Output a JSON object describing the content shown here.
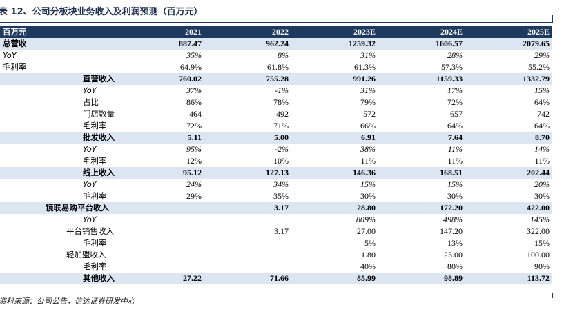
{
  "caption": "表 12、公司分板块业务收入及利润预测（百万元）",
  "source": "资料来源：公司公告，信达证券研发中心",
  "header": [
    "百万元",
    "2021",
    "2022",
    "2023E",
    "2024E",
    "2025E"
  ],
  "rows": [
    {
      "style": "hl",
      "indent": "",
      "cells": [
        "总营收",
        "887.47",
        "962.24",
        "1259.32",
        "1606.57",
        "2079.65"
      ]
    },
    {
      "style": "it",
      "indent": "",
      "cells": [
        "YoY",
        "35%",
        "8%",
        "31%",
        "28%",
        "29%"
      ]
    },
    {
      "style": "",
      "indent": "",
      "cells": [
        "毛利率",
        "64.9%",
        "61.8%",
        "61.3%",
        "57.3%",
        "55.2%"
      ]
    },
    {
      "style": "hl",
      "indent": "i1",
      "cells": [
        "直营收入",
        "760.02",
        "755.28",
        "991.26",
        "1159.33",
        "1332.79"
      ]
    },
    {
      "style": "it",
      "indent": "i1",
      "cells": [
        "YoY",
        "37%",
        "-1%",
        "31%",
        "17%",
        "15%"
      ]
    },
    {
      "style": "",
      "indent": "i1",
      "cells": [
        "占比",
        "86%",
        "78%",
        "79%",
        "72%",
        "64%"
      ]
    },
    {
      "style": "",
      "indent": "i1",
      "cells": [
        "门店数量",
        "464",
        "492",
        "572",
        "657",
        "742"
      ]
    },
    {
      "style": "",
      "indent": "i1",
      "cells": [
        "毛利率",
        "72%",
        "71%",
        "66%",
        "64%",
        "64%"
      ]
    },
    {
      "style": "hl",
      "indent": "i1",
      "cells": [
        "批发收入",
        "5.11",
        "5.00",
        "6.91",
        "7.64",
        "8.70"
      ]
    },
    {
      "style": "it",
      "indent": "i1",
      "cells": [
        "YoY",
        "95%",
        "-2%",
        "38%",
        "11%",
        "14%"
      ]
    },
    {
      "style": "",
      "indent": "i1",
      "cells": [
        "毛利率",
        "12%",
        "10%",
        "11%",
        "11%",
        "11%"
      ]
    },
    {
      "style": "hl",
      "indent": "i1",
      "cells": [
        "线上收入",
        "95.12",
        "127.13",
        "146.36",
        "168.51",
        "202.44"
      ]
    },
    {
      "style": "it",
      "indent": "i1",
      "cells": [
        "YoY",
        "24%",
        "34%",
        "15%",
        "15%",
        "20%"
      ]
    },
    {
      "style": "",
      "indent": "i1",
      "cells": [
        "毛利率",
        "29%",
        "35%",
        "30%",
        "30%",
        "30%"
      ]
    },
    {
      "style": "hl",
      "indent": "i3",
      "cells": [
        "镜联易购平台收入",
        "",
        "3.17",
        "28.80",
        "172.20",
        "422.00"
      ]
    },
    {
      "style": "it",
      "indent": "i1",
      "cells": [
        "YoY",
        "",
        "",
        "809%",
        "498%",
        "145%"
      ]
    },
    {
      "style": "",
      "indent": "i2",
      "cells": [
        "平台销售收入",
        "",
        "3.17",
        "27.00",
        "147.20",
        "322.00"
      ]
    },
    {
      "style": "",
      "indent": "i1",
      "cells": [
        "毛利率",
        "",
        "",
        "5%",
        "13%",
        "15%"
      ]
    },
    {
      "style": "",
      "indent": "i2",
      "cells": [
        "轻加盟收入",
        "",
        "",
        "1.80",
        "25.00",
        "100.00"
      ]
    },
    {
      "style": "",
      "indent": "i1",
      "cells": [
        "毛利率",
        "",
        "",
        "40%",
        "80%",
        "90%"
      ]
    },
    {
      "style": "hl",
      "indent": "i1",
      "cells": [
        "其他收入",
        "27.22",
        "71.66",
        "85.99",
        "98.89",
        "113.72"
      ]
    }
  ]
}
